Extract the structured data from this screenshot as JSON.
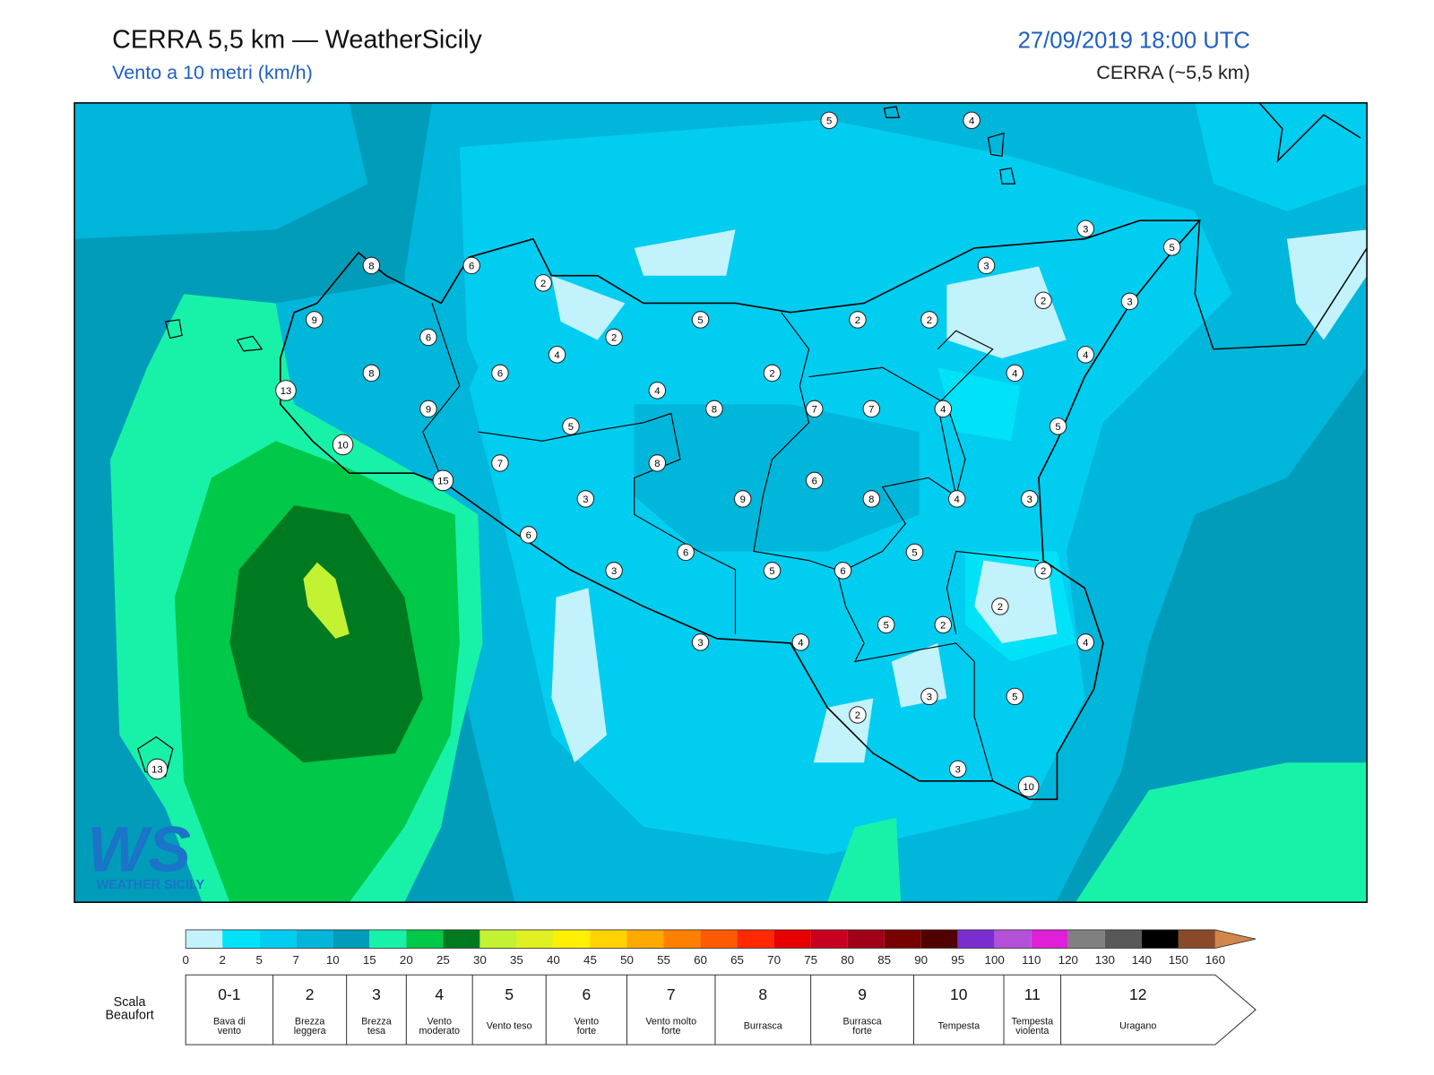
{
  "header": {
    "title": "CERRA 5,5 km — WeatherSicily",
    "subtitle": "Vento a 10 metri (km/h)",
    "datetime": "27/09/2019 18:00 UTC",
    "model": "CERRA (~5,5 km)"
  },
  "logo": {
    "mark": "WS",
    "name": "WEATHER SICILY"
  },
  "stations": [
    5,
    4,
    3,
    5,
    8,
    6,
    3,
    2,
    2,
    3,
    9,
    5,
    2,
    2,
    6,
    2,
    4,
    4,
    8,
    6,
    2,
    4,
    13,
    4,
    9,
    8,
    7,
    7,
    4,
    5,
    5,
    10,
    7,
    8,
    15,
    6,
    3,
    9,
    8,
    4,
    3,
    6,
    6,
    5,
    3,
    5,
    6,
    2,
    2,
    5,
    2,
    3,
    4,
    4,
    2,
    3,
    5,
    3,
    10,
    13
  ],
  "colorbar": {
    "ticks": [
      0,
      2,
      5,
      7,
      10,
      15,
      20,
      25,
      30,
      35,
      40,
      45,
      50,
      55,
      60,
      65,
      70,
      75,
      80,
      85,
      90,
      95,
      100,
      110,
      120,
      130,
      140,
      150,
      160
    ],
    "colors": [
      "#c2f2fb",
      "#00e2f8",
      "#00cdf0",
      "#00b6da",
      "#009cba",
      "#18f2a8",
      "#00c848",
      "#007a20",
      "#c2f232",
      "#e0f020",
      "#fff000",
      "#ffd200",
      "#ffa800",
      "#ff8000",
      "#ff5a00",
      "#ff2800",
      "#e60000",
      "#c80020",
      "#a00018",
      "#780000",
      "#500000",
      "#7a2ed0",
      "#b450d8",
      "#e020d8",
      "#808080",
      "#585858",
      "#000000",
      "#8a4a2a",
      "#d2864a"
    ]
  },
  "beaufort": {
    "label": [
      "Scala",
      "Beaufort"
    ],
    "classes": [
      {
        "force": "0-1",
        "desc": [
          "Bava di",
          "vento"
        ]
      },
      {
        "force": "2",
        "desc": [
          "Brezza",
          "leggera"
        ]
      },
      {
        "force": "3",
        "desc": [
          "Brezza",
          "tesa"
        ]
      },
      {
        "force": "4",
        "desc": [
          "Vento",
          "moderato"
        ]
      },
      {
        "force": "5",
        "desc": [
          "Vento teso"
        ]
      },
      {
        "force": "6",
        "desc": [
          "Vento",
          "forte"
        ]
      },
      {
        "force": "7",
        "desc": [
          "Vento molto",
          "forte"
        ]
      },
      {
        "force": "8",
        "desc": [
          "Burrasca"
        ]
      },
      {
        "force": "9",
        "desc": [
          "Burrasca",
          "forte"
        ]
      },
      {
        "force": "10",
        "desc": [
          "Tempesta"
        ]
      },
      {
        "force": "11",
        "desc": [
          "Tempesta",
          "violenta"
        ]
      },
      {
        "force": "12",
        "desc": [
          "Uragano"
        ]
      }
    ]
  }
}
